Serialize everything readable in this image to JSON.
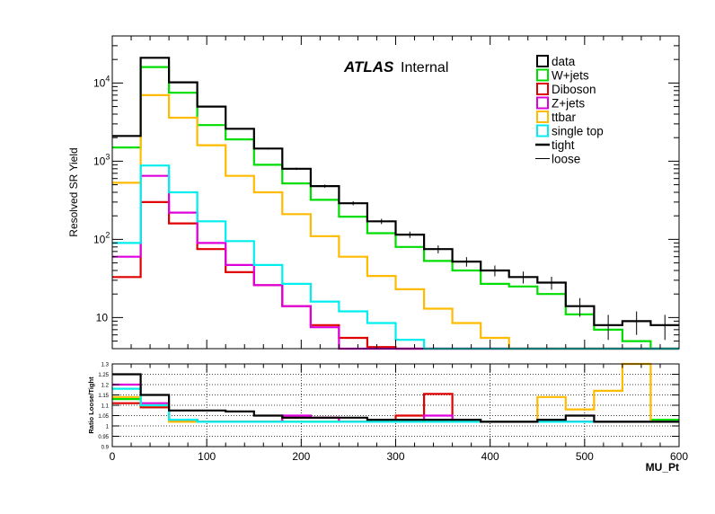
{
  "chart_data": [
    {
      "panel": "main",
      "type": "line",
      "style": "step histogram",
      "title": "",
      "label_brand": "ATLAS",
      "label_status": "Internal",
      "xlabel": "",
      "ylabel": "Resolved SR Yield",
      "yscale": "log",
      "xlim": [
        0,
        600
      ],
      "ylim": [
        4,
        40000
      ],
      "y_ticks": [
        {
          "value": 10,
          "base": "10",
          "exp": ""
        },
        {
          "value": 100,
          "base": "10",
          "exp": "2"
        },
        {
          "value": 1000,
          "base": "10",
          "exp": "3"
        },
        {
          "value": 10000,
          "base": "10",
          "exp": "4"
        }
      ],
      "bin_edges": [
        0,
        30,
        60,
        90,
        120,
        150,
        180,
        210,
        240,
        270,
        300,
        330,
        360,
        390,
        420,
        450,
        480,
        510,
        540,
        570,
        600
      ],
      "series": [
        {
          "name": "data",
          "color": "#000000",
          "values": [
            2100,
            21000,
            10200,
            5000,
            2600,
            1450,
            800,
            480,
            290,
            170,
            115,
            75,
            52,
            40,
            33,
            28,
            14,
            8,
            9,
            8
          ]
        },
        {
          "name": "W+jets",
          "color": "#00dd00",
          "values": [
            1500,
            16000,
            7500,
            2900,
            1900,
            900,
            520,
            320,
            195,
            120,
            80,
            53,
            40,
            27,
            25,
            20,
            11,
            7,
            5,
            3.5
          ]
        },
        {
          "name": "Diboson",
          "color": "#e00000",
          "values": [
            33,
            300,
            160,
            75,
            38,
            26,
            14,
            8,
            5.5,
            4.2,
            3.5,
            3,
            3,
            3,
            3,
            3,
            3,
            3,
            3,
            3
          ]
        },
        {
          "name": "Z+jets",
          "color": "#dd00dd",
          "values": [
            60,
            650,
            220,
            90,
            47,
            26,
            14,
            7.5,
            4,
            3.5,
            3,
            3,
            3,
            3,
            3,
            3,
            3,
            3,
            3,
            3
          ]
        },
        {
          "name": "ttbar",
          "color": "#ffbb00",
          "values": [
            530,
            7000,
            3600,
            1600,
            650,
            400,
            210,
            110,
            60,
            34,
            23,
            13,
            8.5,
            5.5,
            4,
            3,
            3,
            3,
            3,
            3
          ]
        },
        {
          "name": "single top",
          "color": "#00eeee",
          "values": [
            90,
            880,
            400,
            170,
            95,
            47,
            27,
            16,
            12,
            8.5,
            5.2,
            3.5,
            3,
            3,
            3,
            3,
            3,
            3,
            3,
            3
          ]
        }
      ],
      "legend": {
        "placement": "top-right",
        "entries": [
          {
            "label": "data",
            "style": "box",
            "color": "#000000"
          },
          {
            "label": "W+jets",
            "style": "box",
            "color": "#00dd00"
          },
          {
            "label": "Diboson",
            "style": "box",
            "color": "#e00000"
          },
          {
            "label": "Z+jets",
            "style": "box",
            "color": "#dd00dd"
          },
          {
            "label": "ttbar",
            "style": "box",
            "color": "#ffbb00"
          },
          {
            "label": "single top",
            "style": "box",
            "color": "#00eeee"
          },
          {
            "label": "tight",
            "style": "thick-line",
            "color": "#000000"
          },
          {
            "label": "loose",
            "style": "thin-line",
            "color": "#000000"
          }
        ]
      }
    },
    {
      "panel": "ratio",
      "type": "line",
      "style": "step histogram",
      "xlabel": "MU_Pt",
      "ylabel": "Ratio Loose/Tight",
      "xlim": [
        0,
        600
      ],
      "ylim": [
        0.9,
        1.3
      ],
      "grid": true,
      "x_ticks": [
        0,
        100,
        200,
        300,
        400,
        500,
        600
      ],
      "y_ticks": [
        0.9,
        0.95,
        1,
        1.05,
        1.1,
        1.15,
        1.2,
        1.25,
        1.3
      ],
      "bin_edges": [
        0,
        30,
        60,
        90,
        120,
        150,
        180,
        210,
        240,
        270,
        300,
        330,
        360,
        390,
        420,
        450,
        480,
        510,
        540,
        570,
        600
      ],
      "series": [
        {
          "name": "data",
          "color": "#000000",
          "values": [
            1.25,
            1.15,
            1.075,
            1.075,
            1.07,
            1.05,
            1.04,
            1.04,
            1.04,
            1.03,
            1.03,
            1.03,
            1.03,
            1.02,
            1.02,
            1.03,
            1.05,
            1.02,
            1.02,
            1.02
          ]
        },
        {
          "name": "W+jets",
          "color": "#00dd00",
          "values": [
            1.13,
            1.09,
            1.03,
            1.02,
            1.02,
            1.02,
            1.02,
            1.02,
            1.02,
            1.02,
            1.02,
            1.02,
            1.02,
            1.02,
            1.02,
            1.02,
            1.02,
            1.02,
            1.02,
            1.03
          ]
        },
        {
          "name": "Diboson",
          "color": "#e00000",
          "values": [
            1.11,
            1.09,
            1.03,
            1.02,
            1.02,
            1.02,
            1.04,
            1.04,
            1.02,
            1.02,
            1.05,
            1.155,
            1.02,
            1.02,
            1.02,
            1.02,
            1.02,
            1.02,
            1.02,
            1.02
          ]
        },
        {
          "name": "Z+jets",
          "color": "#dd00dd",
          "values": [
            1.2,
            1.11,
            1.03,
            1.02,
            1.02,
            1.02,
            1.05,
            1.04,
            1.02,
            1.02,
            1.02,
            1.05,
            1.02,
            1.02,
            1.02,
            1.02,
            1.02,
            1.02,
            1.02,
            1.02
          ]
        },
        {
          "name": "ttbar",
          "color": "#ffbb00",
          "values": [
            1.14,
            1.1,
            1.02,
            1.02,
            1.02,
            1.02,
            1.02,
            1.02,
            1.02,
            1.02,
            1.02,
            1.02,
            1.02,
            1.02,
            1.02,
            1.14,
            1.08,
            1.17,
            1.3,
            1.02
          ]
        },
        {
          "name": "single top",
          "color": "#00eeee",
          "values": [
            1.18,
            1.1,
            1.03,
            1.02,
            1.02,
            1.02,
            1.02,
            1.02,
            1.02,
            1.02,
            1.02,
            1.02,
            1.02,
            1.02,
            1.02,
            1.02,
            1.02,
            1.02,
            1.02,
            1.02
          ]
        }
      ]
    }
  ]
}
